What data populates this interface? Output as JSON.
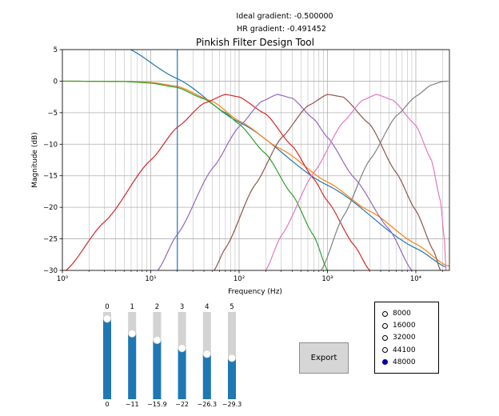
{
  "header": {
    "ideal_gradient": "Ideal gradient: -0.500000",
    "hr_gradient": "HR gradient: -0.491452"
  },
  "chart_data": {
    "type": "line",
    "title": "Pinkish Filter Design Tool",
    "xlabel": "Frequency (Hz)",
    "ylabel": "Magnitude (dB)",
    "xscale": "log",
    "xlim": [
      1,
      24000
    ],
    "ylim": [
      -30,
      5
    ],
    "yticks": [
      5,
      0,
      -5,
      -10,
      -15,
      -20,
      -25,
      -30
    ],
    "xticks": [
      "10⁰",
      "10¹",
      "10²",
      "10³",
      "10⁴"
    ],
    "grid": true,
    "vline_x": 20,
    "series": [
      {
        "color": "#1f77b4",
        "points": [
          [
            1,
            12.6
          ],
          [
            5,
            5.5
          ],
          [
            20,
            0.4
          ],
          [
            100,
            -6.5
          ],
          [
            1000,
            -16.5
          ],
          [
            10000,
            -26.5
          ],
          [
            22000,
            -29.5
          ]
        ]
      },
      {
        "color": "#ff7f0e",
        "points": [
          [
            1,
            0
          ],
          [
            5,
            -0.05
          ],
          [
            10,
            -0.2
          ],
          [
            20,
            -0.8
          ],
          [
            50,
            -3.2
          ],
          [
            100,
            -6.3
          ],
          [
            300,
            -10.8
          ],
          [
            1000,
            -16.0
          ],
          [
            3000,
            -20.6
          ],
          [
            10000,
            -25.8
          ],
          [
            22000,
            -29.2
          ],
          [
            24000,
            -29.3
          ]
        ]
      },
      {
        "color": "#2ca02c",
        "points": [
          [
            1,
            0
          ],
          [
            5,
            -0.05
          ],
          [
            10,
            -0.3
          ],
          [
            20,
            -1.0
          ],
          [
            40,
            -2.8
          ],
          [
            70,
            -5.0
          ],
          [
            100,
            -6.8
          ],
          [
            200,
            -11.5
          ],
          [
            400,
            -18.0
          ],
          [
            700,
            -24.5
          ],
          [
            1000,
            -30
          ]
        ]
      },
      {
        "color": "#d62728",
        "points": [
          [
            1.1,
            -30
          ],
          [
            3,
            -22.3
          ],
          [
            10,
            -12.5
          ],
          [
            20,
            -7.3
          ],
          [
            40,
            -3.5
          ],
          [
            70,
            -2.1
          ],
          [
            100,
            -2.5
          ],
          [
            200,
            -5.2
          ],
          [
            400,
            -10.3
          ],
          [
            700,
            -15.5
          ],
          [
            1000,
            -19.0
          ],
          [
            2000,
            -26.0
          ],
          [
            3000,
            -30
          ]
        ]
      },
      {
        "color": "#9467bd",
        "points": [
          [
            12,
            -30
          ],
          [
            20,
            -24.3
          ],
          [
            50,
            -13.8
          ],
          [
            100,
            -7.2
          ],
          [
            180,
            -3.2
          ],
          [
            270,
            -2.1
          ],
          [
            400,
            -2.7
          ],
          [
            700,
            -6.0
          ],
          [
            1000,
            -8.9
          ],
          [
            2000,
            -15.3
          ],
          [
            5000,
            -23.5
          ],
          [
            9000,
            -30
          ]
        ]
      },
      {
        "color": "#8c564b",
        "points": [
          [
            52,
            -30
          ],
          [
            70,
            -26.5
          ],
          [
            150,
            -16.5
          ],
          [
            300,
            -9.0
          ],
          [
            600,
            -3.9
          ],
          [
            1000,
            -2.1
          ],
          [
            1500,
            -2.5
          ],
          [
            3000,
            -6.8
          ],
          [
            6000,
            -14.5
          ],
          [
            10000,
            -20.5
          ],
          [
            16000,
            -27.0
          ],
          [
            19000,
            -30
          ]
        ]
      },
      {
        "color": "#e377c2",
        "points": [
          [
            200,
            -30
          ],
          [
            300,
            -24.5
          ],
          [
            700,
            -14.5
          ],
          [
            1500,
            -6.5
          ],
          [
            2500,
            -3.0
          ],
          [
            3600,
            -2.1
          ],
          [
            5500,
            -3.0
          ],
          [
            10000,
            -7.0
          ],
          [
            15000,
            -12.5
          ],
          [
            19000,
            -19.0
          ],
          [
            21000,
            -25.0
          ],
          [
            22000,
            -30
          ]
        ]
      },
      {
        "color": "#7f7f7f",
        "points": [
          [
            850,
            -30
          ],
          [
            1500,
            -21.5
          ],
          [
            3000,
            -12.5
          ],
          [
            6000,
            -5.5
          ],
          [
            10000,
            -2.4
          ],
          [
            15000,
            -0.6
          ],
          [
            20000,
            -0.05
          ],
          [
            23000,
            0
          ]
        ]
      }
    ]
  },
  "sliders": [
    {
      "label": "0",
      "value": 0,
      "value_text": "0"
    },
    {
      "label": "1",
      "value": -11,
      "value_text": "−11"
    },
    {
      "label": "2",
      "value": -15.9,
      "value_text": "−15.9"
    },
    {
      "label": "3",
      "value": -22,
      "value_text": "−22"
    },
    {
      "label": "4",
      "value": -26.3,
      "value_text": "−26.3"
    },
    {
      "label": "5",
      "value": -29.3,
      "value_text": "−29.3"
    }
  ],
  "export_button": {
    "label": "Export"
  },
  "sample_rates": {
    "options": [
      "8000",
      "16000",
      "32000",
      "44100",
      "48000"
    ],
    "selected": "48000"
  },
  "colors": {
    "slider_fill": "#1f77b4",
    "slider_track": "#d3d3d3",
    "radio_selected": "#0000aa"
  }
}
